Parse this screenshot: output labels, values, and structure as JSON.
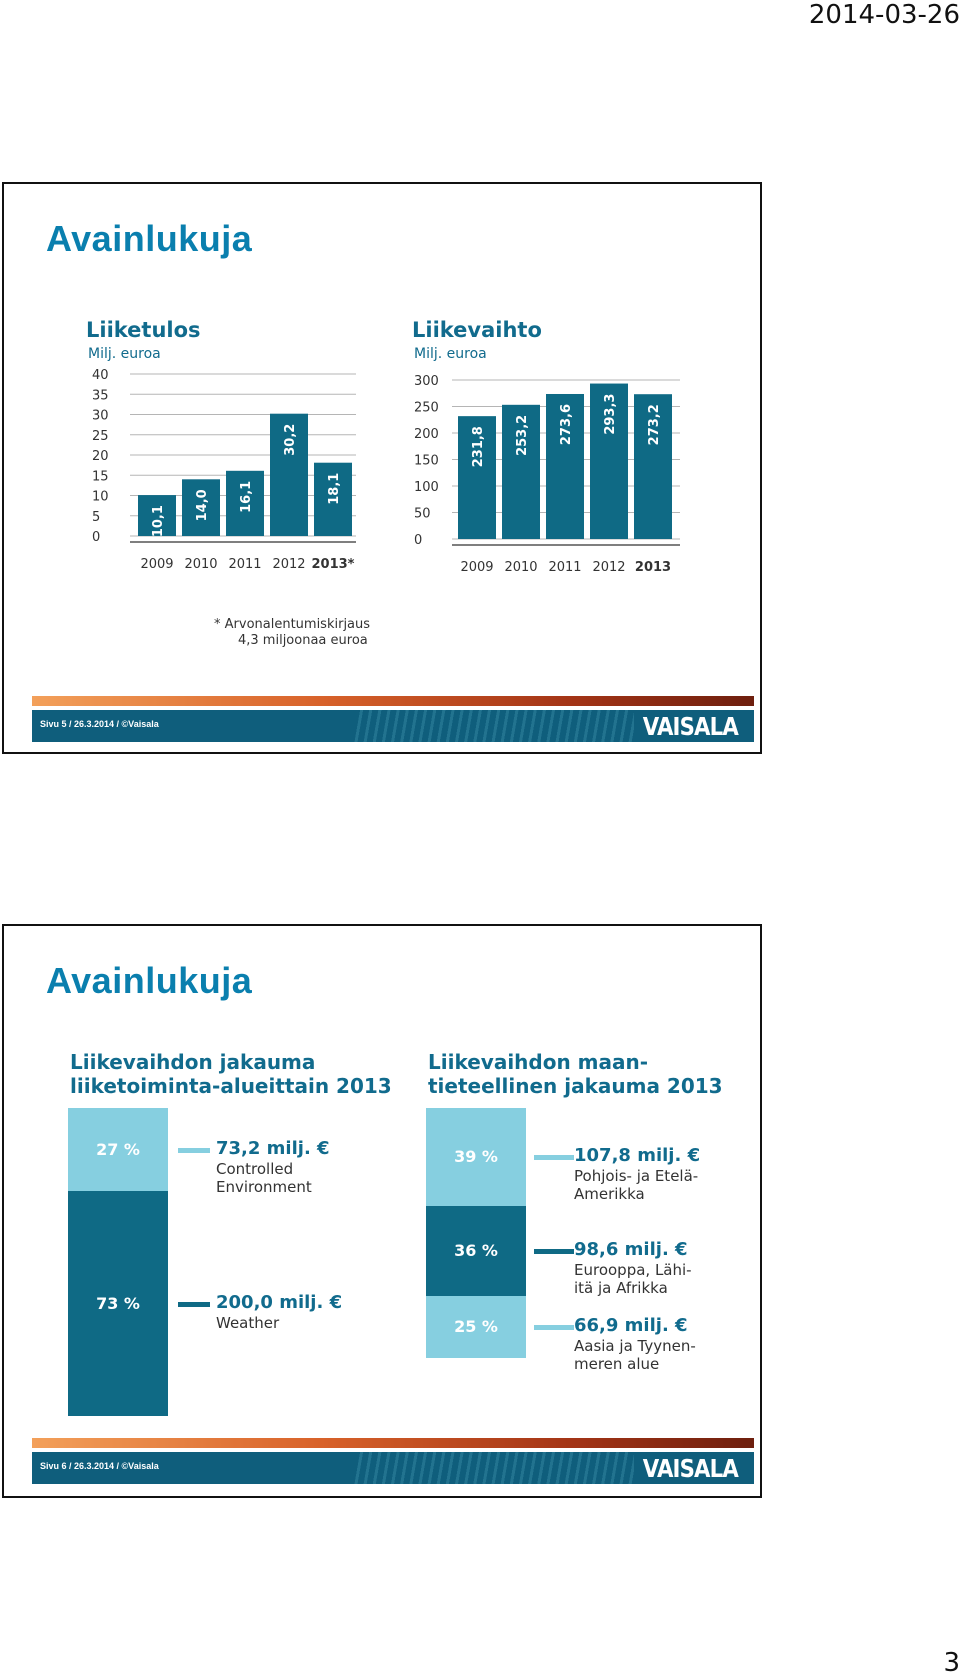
{
  "header": {
    "date": "2014-03-26"
  },
  "page_number": "3",
  "colors": {
    "title": "#0a7fae",
    "bar": "#0f6a85",
    "light": "#86cfe0",
    "text_teal": "#116b8d"
  },
  "slides": [
    {
      "title": "Avainlukuja",
      "footer": "Sivu 5 / 26.3.2014 / ©Vaisala",
      "logo": "VAISALA"
    },
    {
      "title": "Avainlukuja",
      "footer": "Sivu 6 / 26.3.2014 / ©Vaisala",
      "logo": "VAISALA"
    }
  ],
  "chart_data": [
    {
      "type": "bar",
      "title": "Liiketulos",
      "subtitle": "Milj. euroa",
      "categories": [
        "2009",
        "2010",
        "2011",
        "2012",
        "2013*"
      ],
      "values": [
        10.1,
        14.0,
        16.1,
        30.2,
        18.1
      ],
      "value_labels": [
        "10,1",
        "14,0",
        "16,1",
        "30,2",
        "18,1"
      ],
      "yticks": [
        "0",
        "5",
        "10",
        "15",
        "20",
        "25",
        "30",
        "35",
        "40"
      ],
      "ylim": [
        0,
        40
      ],
      "grid": true,
      "footnote_line1": "* Arvonalentumiskirjaus",
      "footnote_line2": "4,3 miljoonaa euroa"
    },
    {
      "type": "bar",
      "title": "Liikevaihto",
      "subtitle": "Milj. euroa",
      "categories": [
        "2009",
        "2010",
        "2011",
        "2012",
        "2013"
      ],
      "values": [
        231.8,
        253.2,
        273.6,
        293.3,
        273.2
      ],
      "value_labels": [
        "231,8",
        "253,2",
        "273,6",
        "293,3",
        "273,2"
      ],
      "yticks": [
        "0",
        "50",
        "100",
        "150",
        "200",
        "250",
        "300"
      ],
      "ylim": [
        0,
        300
      ],
      "grid": true
    },
    {
      "type": "bar",
      "stacked": true,
      "title_line1": "Liikevaihdon jakauma",
      "title_line2": "liiketoiminta-alueittain 2013",
      "series": [
        {
          "percent": 27,
          "label": "27 %",
          "amount": "73,2 milj. €",
          "desc_line1": "Controlled",
          "desc_line2": "Environment",
          "color": "#86cfe0"
        },
        {
          "percent": 73,
          "label": "73 %",
          "amount": "200,0 milj. €",
          "desc_line1": "Weather",
          "desc_line2": "",
          "color": "#0f6a85"
        }
      ]
    },
    {
      "type": "bar",
      "stacked": true,
      "title_line1": "Liikevaihdon maan-",
      "title_line2": "tieteellinen jakauma 2013",
      "series": [
        {
          "percent": 39,
          "label": "39 %",
          "amount": "107,8 milj. €",
          "desc_line1": "Pohjois- ja Etelä-",
          "desc_line2": "Amerikka",
          "color": "#86cfe0"
        },
        {
          "percent": 36,
          "label": "36 %",
          "amount": "98,6 milj. €",
          "desc_line1": "Eurooppa, Lähi-",
          "desc_line2": "itä ja Afrikka",
          "color": "#0f6a85"
        },
        {
          "percent": 25,
          "label": "25 %",
          "amount": "66,9 milj. €",
          "desc_line1": "Aasia ja Tyynen-",
          "desc_line2": "meren alue",
          "color": "#86cfe0"
        }
      ]
    }
  ]
}
